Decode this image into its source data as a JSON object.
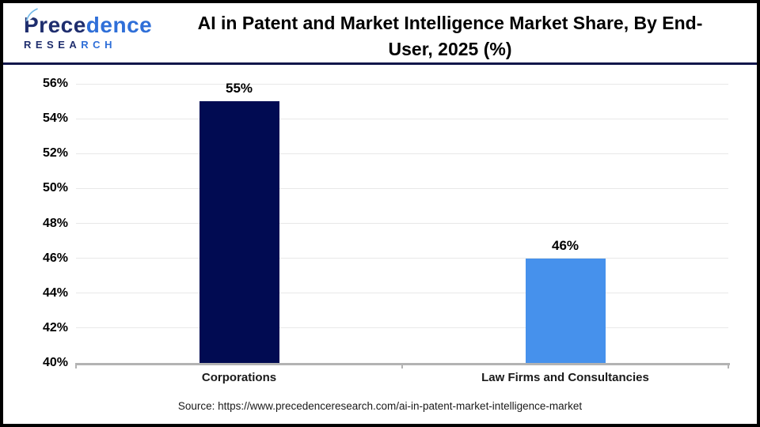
{
  "header": {
    "logo": {
      "brand_primary": "Prece",
      "brand_secondary": "dence",
      "subtext_primary": "RESEA",
      "subtext_secondary": "RCH"
    },
    "title_line1": "AI in Patent and Market Intelligence Market Share, By End-",
    "title_line2": "User, 2025 (%)"
  },
  "chart_data": {
    "type": "bar",
    "title": "AI in Patent and Market Intelligence Market Share, By End-User, 2025 (%)",
    "categories": [
      "Corporations",
      "Law Firms and Consultancies"
    ],
    "values": [
      55,
      46
    ],
    "value_labels": [
      "55%",
      "46%"
    ],
    "bar_colors": [
      "#010b52",
      "#4691ec"
    ],
    "ylim": [
      40,
      56
    ],
    "ytick_step": 2,
    "ytick_suffix": "%",
    "grid": true,
    "legend_position": "none",
    "xlabel": "",
    "ylabel": ""
  },
  "footer": {
    "source": "Source: https://www.precedenceresearch.com/ai-in-patent-market-intelligence-market"
  },
  "colors": {
    "bar_corporations": "#010b52",
    "bar_law_firms": "#4691ec",
    "header_divider": "#10164a",
    "gridline": "#e8e8e8",
    "axis_line": "#b3b3b3",
    "logo_navy": "#1f2e6e",
    "logo_blue": "#2f6fd8"
  }
}
